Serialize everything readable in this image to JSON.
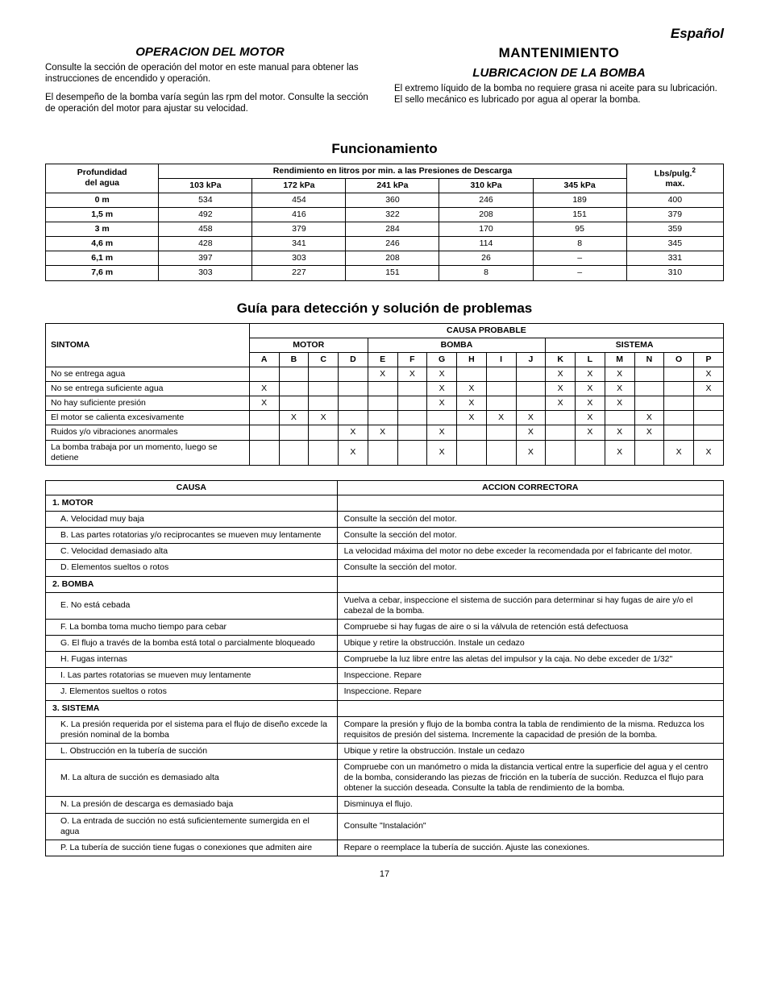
{
  "lang_tag": "Español",
  "left": {
    "heading": "OPERACION DEL MOTOR",
    "p1": "Consulte la sección de operación del motor en este manual para obtener las instrucciones de encendido y operación.",
    "p2": "El desempeño de la bomba varía según las rpm del motor. Consulte la sección de operación del motor para ajustar su velocidad."
  },
  "right": {
    "heading_main": "MANTENIMIENTO",
    "heading_sub": "LUBRICACION DE LA BOMBA",
    "p1": "El extremo líquido de la bomba no requiere grasa ni aceite para su lubricación. El sello mecánico es lubricado por agua al operar la bomba."
  },
  "perf": {
    "title": "Funcionamiento",
    "col_depth": "Profundidad\ndel agua",
    "group_header": "Rendimiento en litros por min. a las Presiones de Descarga",
    "col_last": "Lbs/pulg.²\nmax.",
    "pressure_cols": [
      "103 kPa",
      "172 kPa",
      "241 kPa",
      "310 kPa",
      "345 kPa"
    ],
    "rows": [
      {
        "depth": "0 m",
        "v": [
          "534",
          "454",
          "360",
          "246",
          "189",
          "400"
        ]
      },
      {
        "depth": "1,5 m",
        "v": [
          "492",
          "416",
          "322",
          "208",
          "151",
          "379"
        ]
      },
      {
        "depth": "3 m",
        "v": [
          "458",
          "379",
          "284",
          "170",
          "95",
          "359"
        ]
      },
      {
        "depth": "4,6 m",
        "v": [
          "428",
          "341",
          "246",
          "114",
          "8",
          "345"
        ]
      },
      {
        "depth": "6,1 m",
        "v": [
          "397",
          "303",
          "208",
          "26",
          "–",
          "331"
        ]
      },
      {
        "depth": "7,6 m",
        "v": [
          "303",
          "227",
          "151",
          "8",
          "–",
          "310"
        ]
      }
    ]
  },
  "ts": {
    "title": "Guía para detección y solución de problemas",
    "col_symptom": "SINTOMA",
    "group_cause": "CAUSA PROBABLE",
    "group_motor": "MOTOR",
    "group_bomba": "BOMBA",
    "group_sistema": "SISTEMA",
    "letters": [
      "A",
      "B",
      "C",
      "D",
      "E",
      "F",
      "G",
      "H",
      "I",
      "J",
      "K",
      "L",
      "M",
      "N",
      "O",
      "P"
    ],
    "rows": [
      {
        "s": "No se entrega agua",
        "m": [
          "",
          "",
          "",
          "",
          "X",
          "X",
          "X",
          "",
          "",
          "",
          "X",
          "X",
          "X",
          "",
          "",
          "X"
        ]
      },
      {
        "s": "No se entrega suficiente agua",
        "m": [
          "X",
          "",
          "",
          "",
          "",
          "",
          "X",
          "X",
          "",
          "",
          "X",
          "X",
          "X",
          "",
          "",
          "X"
        ]
      },
      {
        "s": "No hay suficiente presión",
        "m": [
          "X",
          "",
          "",
          "",
          "",
          "",
          "X",
          "X",
          "",
          "",
          "X",
          "X",
          "X",
          "",
          "",
          ""
        ]
      },
      {
        "s": "El motor se calienta excesivamente",
        "m": [
          "",
          "X",
          "X",
          "",
          "",
          "",
          "",
          "X",
          "X",
          "X",
          "",
          "X",
          "",
          "X",
          "",
          ""
        ]
      },
      {
        "s": "Ruidos y/o vibraciones anormales",
        "m": [
          "",
          "",
          "",
          "X",
          "X",
          "",
          "X",
          "",
          "",
          "X",
          "",
          "X",
          "X",
          "X",
          "",
          ""
        ]
      },
      {
        "s": "La bomba trabaja por un momento, luego se detiene",
        "m": [
          "",
          "",
          "",
          "X",
          "",
          "",
          "X",
          "",
          "",
          "X",
          "",
          "",
          "X",
          "",
          "X",
          "X"
        ]
      }
    ]
  },
  "ca": {
    "col_causa": "CAUSA",
    "col_accion": "ACCION CORRECTORA",
    "sections": [
      {
        "header": "1. MOTOR",
        "rows": [
          {
            "c": "A. Velocidad muy baja",
            "a": "Consulte la sección del motor."
          },
          {
            "c": "B. Las partes rotatorias y/o reciprocantes se mueven muy lentamente",
            "a": "Consulte la sección del motor."
          },
          {
            "c": "C. Velocidad demasiado alta",
            "a": "La velocidad máxima del motor no debe exceder la recomendada por el fabricante del motor."
          },
          {
            "c": "D. Elementos sueltos o rotos",
            "a": "Consulte la sección del motor."
          }
        ]
      },
      {
        "header": "2. BOMBA",
        "rows": [
          {
            "c": "E. No está cebada",
            "a": "Vuelva a cebar, inspeccione el sistema de succión para determinar si hay fugas de aire y/o el cabezal de la bomba."
          },
          {
            "c": "F. La bomba toma mucho tiempo para cebar",
            "a": "Compruebe si hay fugas de aire o si la válvula de retención está defectuosa"
          },
          {
            "c": "G. El flujo a través de la bomba está total o parcialmente bloqueado",
            "a": "Ubique y retire la obstrucción. Instale un cedazo"
          },
          {
            "c": "H. Fugas internas",
            "a": "Compruebe la luz libre entre las aletas del impulsor y la caja. No debe exceder de 1/32\""
          },
          {
            "c": "I.  Las partes rotatorias se mueven muy lentamente",
            "a": "Inspeccione. Repare"
          },
          {
            "c": "J.  Elementos sueltos o rotos",
            "a": "Inspeccione. Repare"
          }
        ]
      },
      {
        "header": "3. SISTEMA",
        "rows": [
          {
            "c": "K. La presión requerida por el sistema para el flujo de diseño excede la presión nominal de la bomba",
            "a": "Compare la presión y flujo de la bomba contra la tabla de rendimiento de la misma. Reduzca los requisitos de presión del sistema. Incremente la capacidad de presión de la bomba."
          },
          {
            "c": "L.  Obstrucción en la tubería de succión",
            "a": "Ubique y retire la obstrucción. Instale un cedazo"
          },
          {
            "c": "M. La altura de succión es demasiado alta",
            "a": "Compruebe con un manómetro o mida la distancia vertical entre la superficie del agua y el centro de la bomba, considerando las piezas de fricción en la tubería de succión. Reduzca el flujo para obtener la succión deseada. Consulte la tabla de rendimiento de la bomba."
          },
          {
            "c": "N. La presión de descarga es demasiado baja",
            "a": "Disminuya el flujo."
          },
          {
            "c": "O. La entrada de succión no está suficientemente sumergida en el agua",
            "a": "Consulte \"Instalación\""
          },
          {
            "c": "P. La tubería de succión tiene fugas o conexiones que admiten aire",
            "a": "Repare o reemplace la tubería de succión. Ajuste las conexiones."
          }
        ]
      }
    ]
  },
  "page_number": "17"
}
